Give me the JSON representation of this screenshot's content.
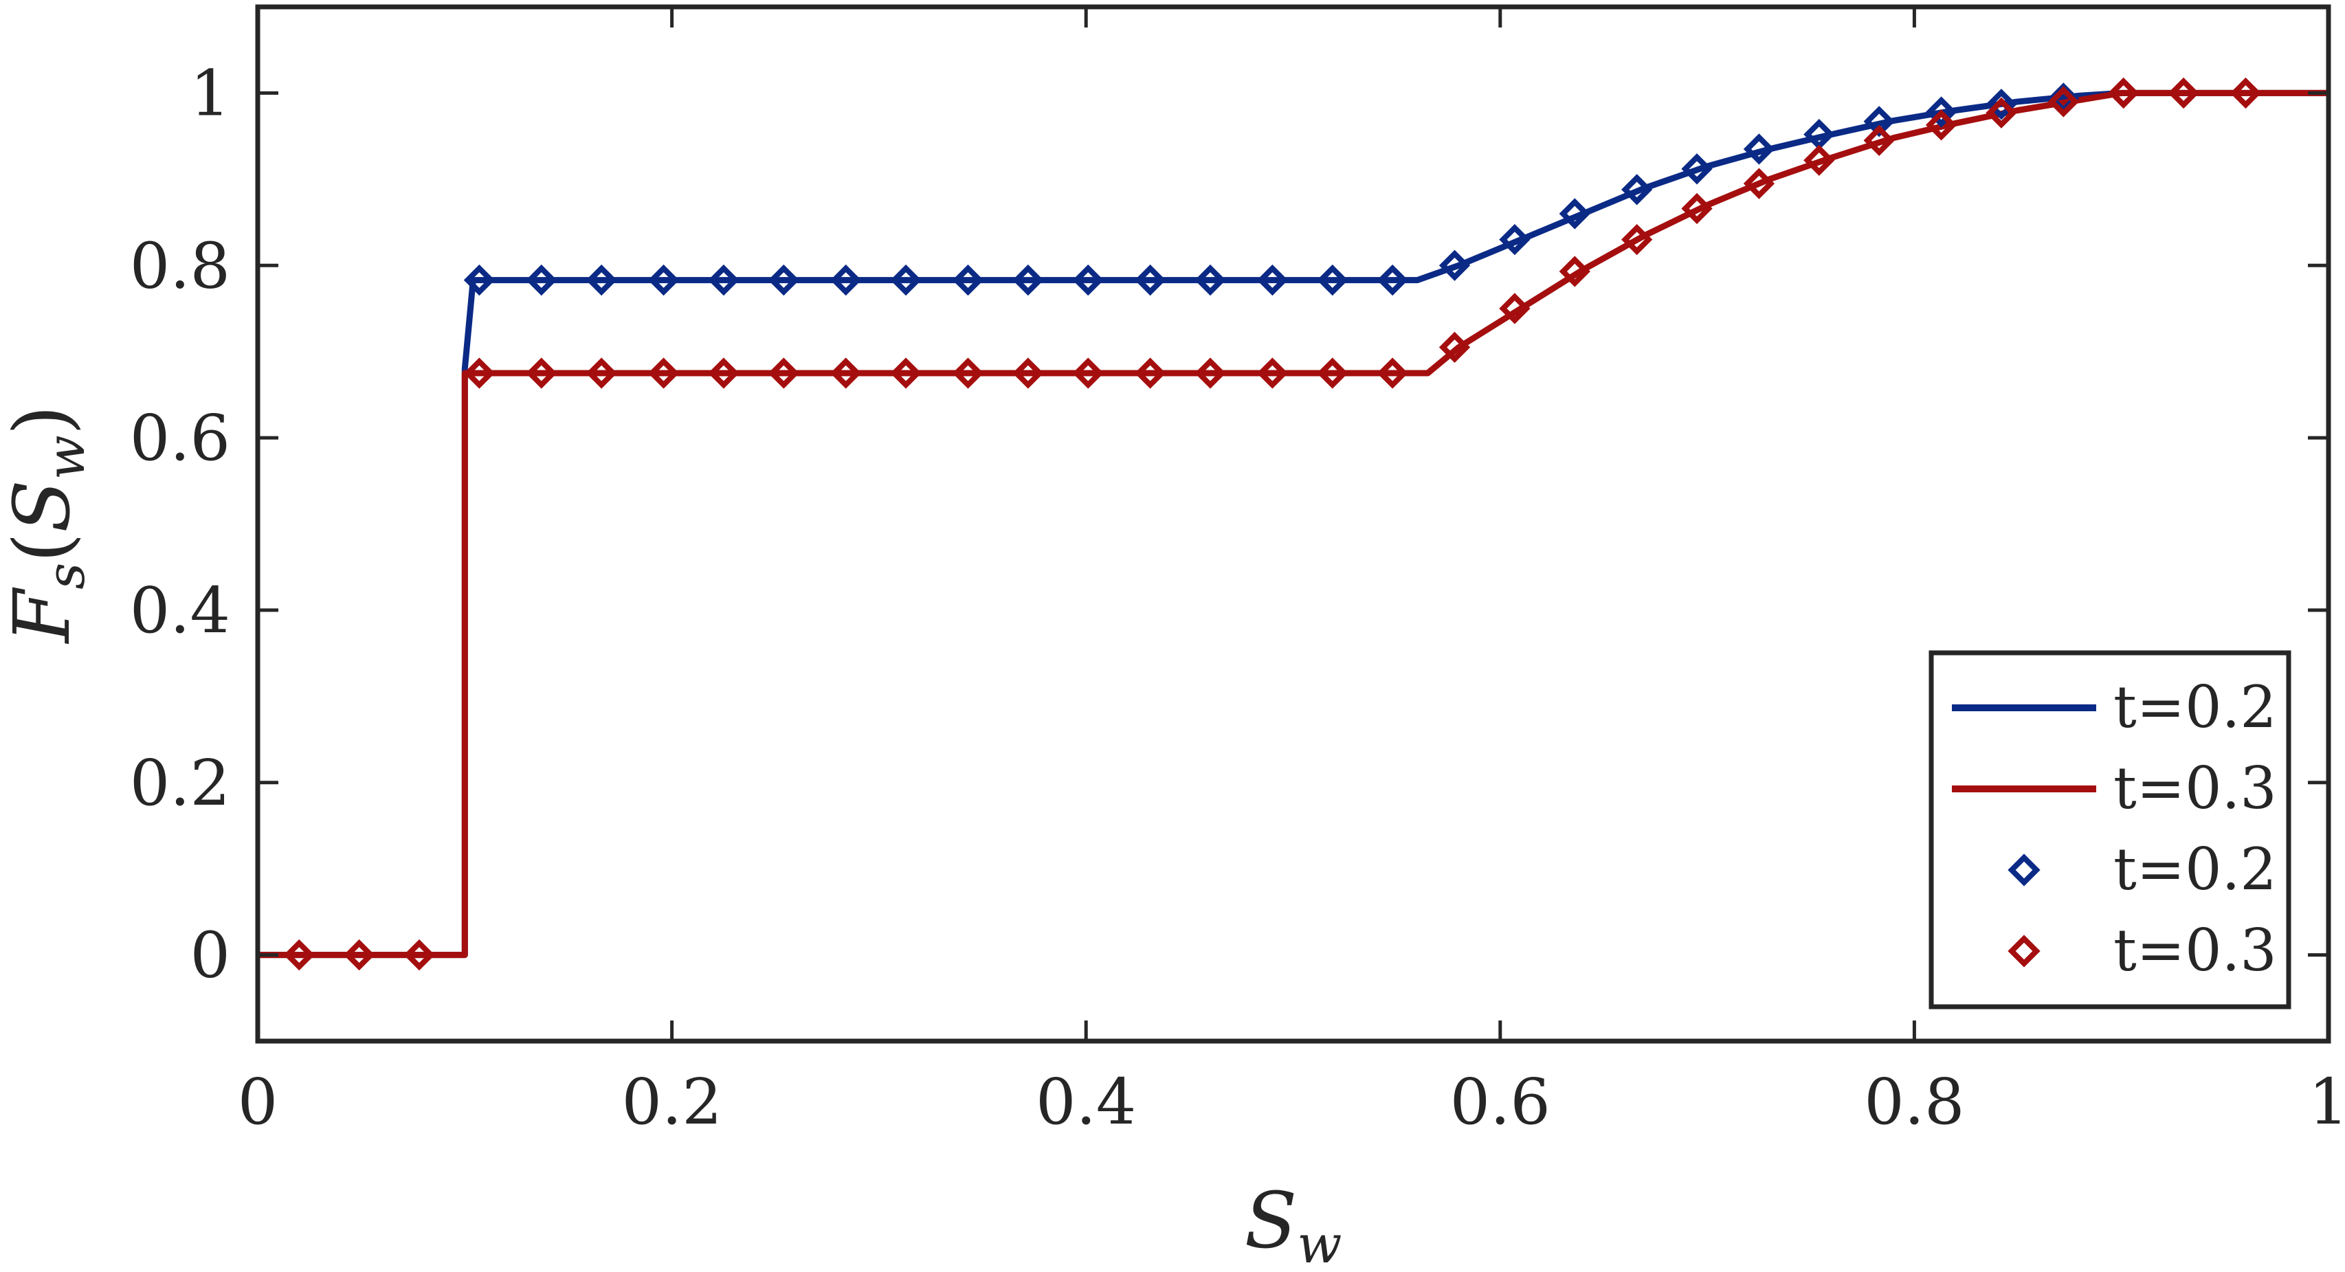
{
  "chart_data": {
    "type": "line",
    "xlabel": "S",
    "xlabel_sub": "w",
    "ylabel_main": "F",
    "ylabel_sub1": "s",
    "ylabel_paren_open": "(",
    "ylabel_var": "S",
    "ylabel_sub2": "w",
    "ylabel_paren_close": ")",
    "xlim": [
      0,
      1
    ],
    "ylim": [
      -0.1,
      1.1
    ],
    "xticks": [
      0,
      0.2,
      0.4,
      0.6,
      0.8,
      1
    ],
    "xtick_labels": [
      "0",
      "0.2",
      "0.4",
      "0.6",
      "0.8",
      "1"
    ],
    "yticks": [
      0,
      0.2,
      0.4,
      0.6,
      0.8,
      1
    ],
    "ytick_labels": [
      "0",
      "0.2",
      "0.4",
      "0.6",
      "0.8",
      "1"
    ],
    "grid": false,
    "legend_position": "bottom-right",
    "colors": {
      "blue": "#0b2a86",
      "red": "#a50e0e",
      "axis": "#262626"
    },
    "series": [
      {
        "name": "t=0.2",
        "style": "line",
        "color": "#0b2a86",
        "x": [
          0,
          0.1,
          0.1,
          0.104,
          0.56,
          0.58,
          0.61,
          0.64,
          0.67,
          0.7,
          0.73,
          0.76,
          0.79,
          0.82,
          0.85,
          0.88,
          0.9,
          1.0
        ],
        "y": [
          0,
          0,
          0.68,
          0.783,
          0.783,
          0.8,
          0.83,
          0.86,
          0.89,
          0.915,
          0.935,
          0.952,
          0.968,
          0.98,
          0.99,
          0.997,
          1.0,
          1.0
        ]
      },
      {
        "name": "t=0.3",
        "style": "line",
        "color": "#a50e0e",
        "x": [
          0,
          0.1,
          0.1,
          0.565,
          0.58,
          0.61,
          0.64,
          0.67,
          0.7,
          0.73,
          0.76,
          0.79,
          0.82,
          0.85,
          0.88,
          0.9,
          1.0
        ],
        "y": [
          0,
          0,
          0.675,
          0.675,
          0.705,
          0.75,
          0.795,
          0.835,
          0.87,
          0.9,
          0.925,
          0.948,
          0.965,
          0.98,
          0.992,
          1.0,
          1.0
        ]
      },
      {
        "name": "t=0.2",
        "style": "markers",
        "color": "#0b2a86",
        "x": [
          0.107,
          0.137,
          0.166,
          0.196,
          0.225,
          0.254,
          0.284,
          0.313,
          0.343,
          0.372,
          0.401,
          0.431,
          0.46,
          0.49,
          0.519,
          0.548,
          0.578,
          0.607,
          0.636,
          0.666,
          0.695,
          0.725,
          0.754,
          0.783,
          0.813,
          0.842,
          0.872
        ],
        "y": [
          0.783,
          0.783,
          0.783,
          0.783,
          0.783,
          0.783,
          0.783,
          0.783,
          0.783,
          0.783,
          0.783,
          0.783,
          0.783,
          0.783,
          0.783,
          0.783,
          0.8,
          0.83,
          0.86,
          0.888,
          0.912,
          0.935,
          0.952,
          0.967,
          0.978,
          0.987,
          0.994
        ]
      },
      {
        "name": "t=0.3",
        "style": "markers",
        "color": "#a50e0e",
        "x": [
          0.02,
          0.049,
          0.078,
          0.107,
          0.137,
          0.166,
          0.196,
          0.225,
          0.254,
          0.284,
          0.313,
          0.343,
          0.372,
          0.401,
          0.431,
          0.46,
          0.49,
          0.519,
          0.548,
          0.578,
          0.607,
          0.636,
          0.666,
          0.695,
          0.725,
          0.754,
          0.783,
          0.813,
          0.842,
          0.872,
          0.901,
          0.93,
          0.96
        ],
        "y": [
          0,
          0,
          0,
          0.675,
          0.675,
          0.675,
          0.675,
          0.675,
          0.675,
          0.675,
          0.675,
          0.675,
          0.675,
          0.675,
          0.675,
          0.675,
          0.675,
          0.675,
          0.675,
          0.705,
          0.75,
          0.793,
          0.83,
          0.866,
          0.895,
          0.922,
          0.945,
          0.963,
          0.977,
          0.99,
          1.0,
          1.0,
          1.0
        ]
      }
    ],
    "legend": [
      {
        "label": "t=0.2",
        "kind": "line",
        "color": "#0b2a86"
      },
      {
        "label": "t=0.3",
        "kind": "line",
        "color": "#a50e0e"
      },
      {
        "label": "t=0.2",
        "kind": "marker",
        "color": "#0b2a86"
      },
      {
        "label": "t=0.3",
        "kind": "marker",
        "color": "#a50e0e"
      }
    ]
  }
}
